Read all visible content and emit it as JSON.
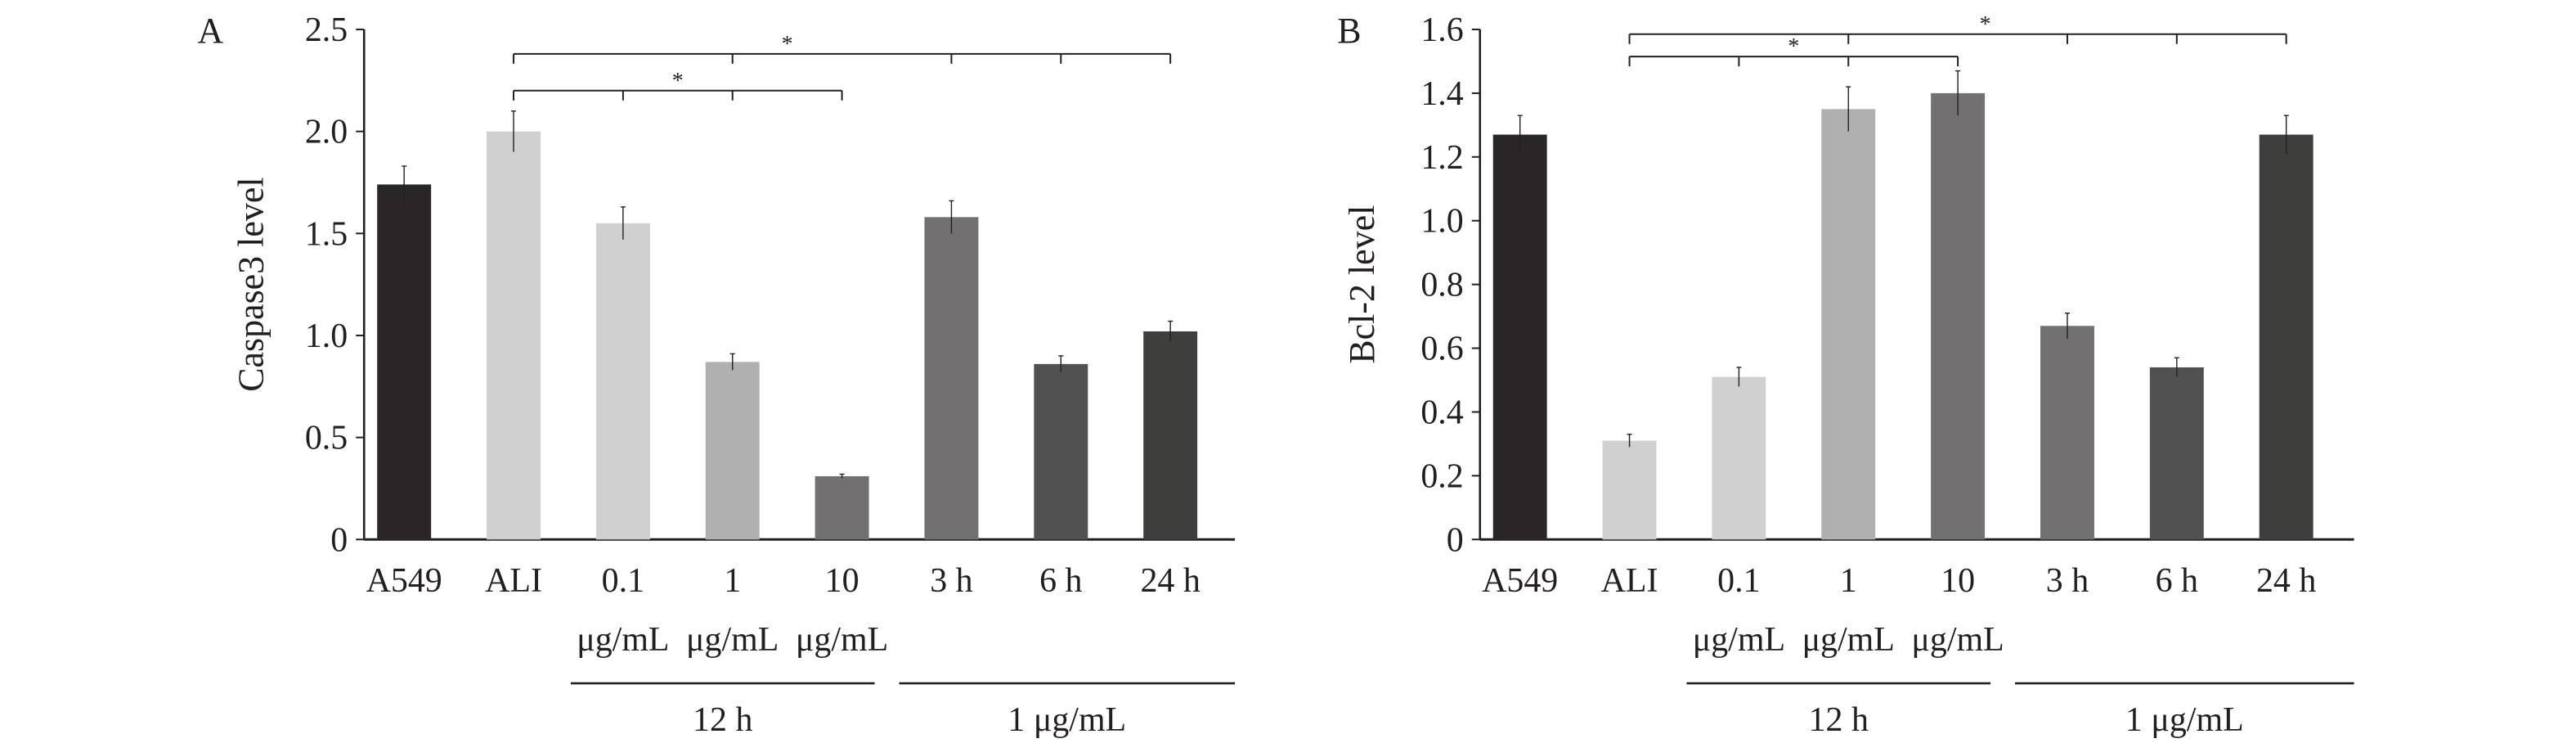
{
  "chart_data": [
    {
      "type": "bar",
      "panel_label": "A",
      "ylabel": "Caspase3 level",
      "ylim": [
        0,
        2.5
      ],
      "yticks": [
        "0",
        "0.5",
        "1.0",
        "1.5",
        "2.0",
        "2.5"
      ],
      "ytick_values": [
        0,
        0.5,
        1.0,
        1.5,
        2.0,
        2.5
      ],
      "categories": [
        "A549",
        "ALI",
        "0.1",
        "1",
        "10",
        "3 h",
        "6 h",
        "24 h"
      ],
      "category_sublabels": [
        "",
        "",
        "μg/mL",
        "μg/mL",
        "μg/mL",
        "",
        "",
        ""
      ],
      "values": [
        1.74,
        2.0,
        1.55,
        0.87,
        0.31,
        1.58,
        0.86,
        1.02
      ],
      "errors": [
        0.09,
        0.1,
        0.08,
        0.04,
        0.01,
        0.08,
        0.04,
        0.05
      ],
      "colors": [
        "#2a2627",
        "#d0d0d0",
        "#d0d0d0",
        "#b0b0b0",
        "#727071",
        "#727071",
        "#525152",
        "#3e3e3d"
      ],
      "groups": [
        {
          "label": "12 h",
          "from": 2,
          "to": 4
        },
        {
          "label": "1 μg/mL",
          "from": 5,
          "to": 7
        }
      ],
      "significance": [
        {
          "label": "*",
          "y": 2.38,
          "from": 1,
          "to": 7,
          "ticks": [
            1,
            3,
            5,
            6,
            7
          ],
          "star_at": 3.5
        },
        {
          "label": "*",
          "y": 2.2,
          "from": 1,
          "to": 4,
          "ticks": [
            1,
            2,
            3,
            4
          ],
          "star_at": 2.5
        }
      ]
    },
    {
      "type": "bar",
      "panel_label": "B",
      "ylabel": "Bcl-2 level",
      "ylim": [
        0,
        1.6
      ],
      "yticks": [
        "0",
        "0.2",
        "0.4",
        "0.6",
        "0.8",
        "1.0",
        "1.2",
        "1.4",
        "1.6"
      ],
      "ytick_values": [
        0,
        0.2,
        0.4,
        0.6,
        0.8,
        1.0,
        1.2,
        1.4,
        1.6
      ],
      "categories": [
        "A549",
        "ALI",
        "0.1",
        "1",
        "10",
        "3 h",
        "6 h",
        "24 h"
      ],
      "category_sublabels": [
        "",
        "",
        "μg/mL",
        "μg/mL",
        "μg/mL",
        "",
        "",
        ""
      ],
      "values": [
        1.27,
        0.31,
        0.51,
        1.35,
        1.4,
        0.67,
        0.54,
        1.27
      ],
      "errors": [
        0.06,
        0.02,
        0.03,
        0.07,
        0.07,
        0.04,
        0.03,
        0.06
      ],
      "colors": [
        "#2a2627",
        "#d0d0d0",
        "#d0d0d0",
        "#b0b0b0",
        "#727071",
        "#727071",
        "#525152",
        "#3e3e3d"
      ],
      "groups": [
        {
          "label": "12 h",
          "from": 2,
          "to": 4
        },
        {
          "label": "1 μg/mL",
          "from": 5,
          "to": 7
        }
      ],
      "significance": [
        {
          "label": "*",
          "y": 1.585,
          "from": 1,
          "to": 7,
          "ticks": [
            1,
            3,
            5,
            6,
            7
          ],
          "star_at": 4.25
        },
        {
          "label": "*",
          "y": 1.515,
          "from": 1,
          "to": 4,
          "ticks": [
            1,
            2,
            3,
            4
          ],
          "star_at": 2.5
        }
      ]
    }
  ]
}
